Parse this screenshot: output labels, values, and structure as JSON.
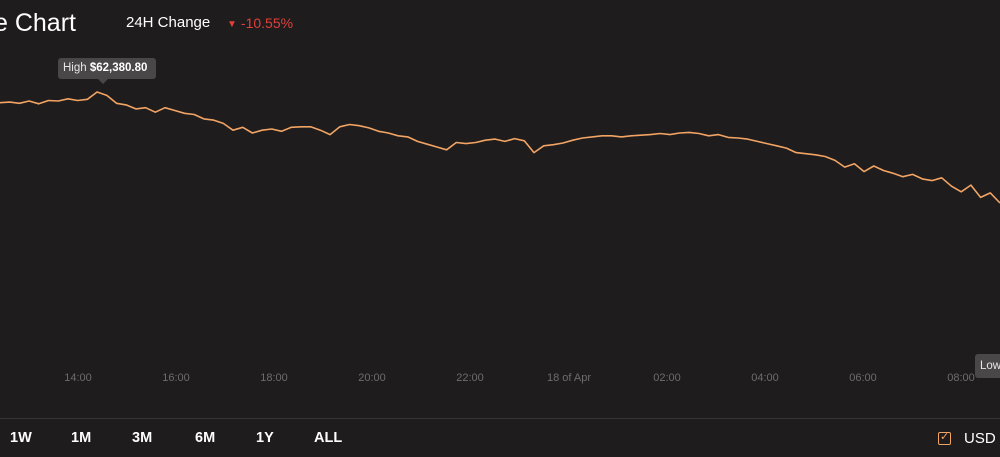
{
  "header": {
    "title": "e Chart",
    "change_label": "24H Change",
    "change_value": "-10.55%",
    "change_direction": "down",
    "down_color": "#e0403b"
  },
  "tooltips": {
    "high_label": "High",
    "high_value": "$62,380.80",
    "low_label": "Low"
  },
  "chart_data": {
    "type": "line",
    "line_color": "#f2a464",
    "grid": false,
    "x_ticks": [
      "14:00",
      "16:00",
      "18:00",
      "20:00",
      "22:00",
      "18 of Apr",
      "02:00",
      "04:00",
      "06:00",
      "08:00"
    ],
    "series": [
      {
        "values": [
          62190,
          62200,
          62180,
          62220,
          62170,
          62230,
          62220,
          62260,
          62230,
          62250,
          62380,
          62320,
          62180,
          62150,
          62080,
          62100,
          62020,
          62100,
          62050,
          62000,
          61980,
          61900,
          61880,
          61820,
          61700,
          61750,
          61650,
          61700,
          61720,
          61680,
          61750,
          61760,
          61760,
          61700,
          61620,
          61760,
          61800,
          61780,
          61740,
          61680,
          61650,
          61600,
          61580,
          61500,
          61450,
          61400,
          61350,
          61480,
          61460,
          61480,
          61520,
          61540,
          61500,
          61550,
          61510,
          61300,
          61420,
          61440,
          61470,
          61520,
          61560,
          61580,
          61600,
          61600,
          61580,
          61600,
          61610,
          61620,
          61640,
          61620,
          61650,
          61660,
          61640,
          61600,
          61620,
          61570,
          61560,
          61540,
          61500,
          61460,
          61420,
          61380,
          61300,
          61280,
          61260,
          61230,
          61160,
          61040,
          61100,
          60960,
          61060,
          60980,
          60930,
          60870,
          60910,
          60830,
          60800,
          60850,
          60700,
          60600,
          60720,
          60500,
          60580,
          60400
        ]
      }
    ],
    "high": 62380.8
  },
  "range_buttons": [
    "1W",
    "1M",
    "3M",
    "6M",
    "1Y",
    "ALL"
  ],
  "currency": {
    "label": "USD",
    "checked": true,
    "accent": "#f2a464"
  }
}
